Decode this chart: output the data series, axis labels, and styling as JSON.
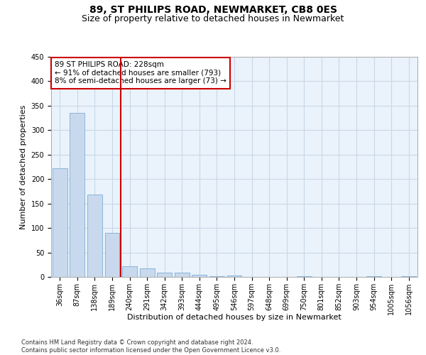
{
  "title": "89, ST PHILIPS ROAD, NEWMARKET, CB8 0ES",
  "subtitle": "Size of property relative to detached houses in Newmarket",
  "xlabel": "Distribution of detached houses by size in Newmarket",
  "ylabel": "Number of detached properties",
  "categories": [
    "36sqm",
    "87sqm",
    "138sqm",
    "189sqm",
    "240sqm",
    "291sqm",
    "342sqm",
    "393sqm",
    "444sqm",
    "495sqm",
    "546sqm",
    "597sqm",
    "648sqm",
    "699sqm",
    "750sqm",
    "801sqm",
    "852sqm",
    "903sqm",
    "954sqm",
    "1005sqm",
    "1056sqm"
  ],
  "values": [
    222,
    335,
    168,
    90,
    22,
    17,
    8,
    9,
    5,
    1,
    3,
    0,
    0,
    0,
    1,
    0,
    0,
    0,
    2,
    0,
    1
  ],
  "bar_color": "#c9d9ed",
  "bar_edge_color": "#7bafd4",
  "vline_x": 3.5,
  "vline_color": "#cc0000",
  "annotation_text": "89 ST PHILIPS ROAD: 228sqm\n← 91% of detached houses are smaller (793)\n8% of semi-detached houses are larger (73) →",
  "annotation_box_color": "#ffffff",
  "annotation_box_edge": "#cc0000",
  "ylim": [
    0,
    450
  ],
  "yticks": [
    0,
    50,
    100,
    150,
    200,
    250,
    300,
    350,
    400,
    450
  ],
  "footnote": "Contains HM Land Registry data © Crown copyright and database right 2024.\nContains public sector information licensed under the Open Government Licence v3.0.",
  "bg_color": "#ffffff",
  "grid_color": "#c8d8e8",
  "title_fontsize": 10,
  "subtitle_fontsize": 9,
  "axis_fontsize": 8,
  "annotation_fontsize": 7.5,
  "footnote_fontsize": 6,
  "tick_fontsize": 7
}
